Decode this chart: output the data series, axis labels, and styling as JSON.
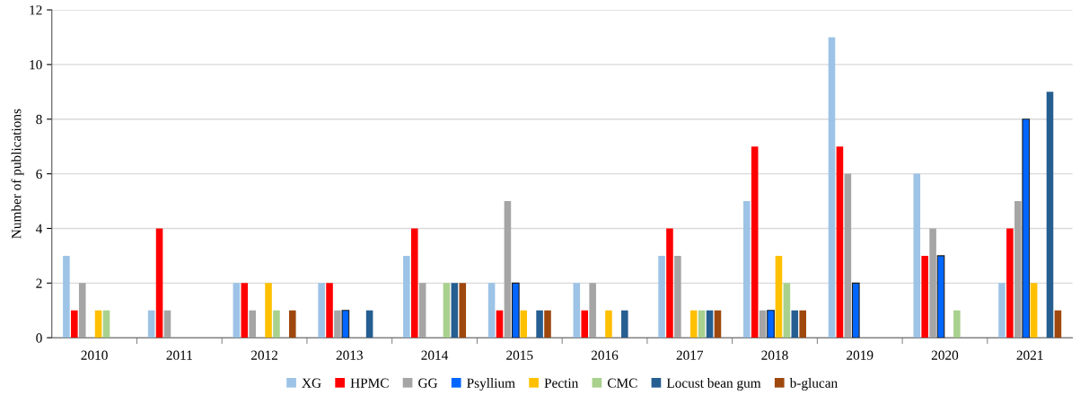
{
  "chart_data": {
    "type": "bar",
    "ylabel": "Number of publications",
    "categories": [
      "2010",
      "2011",
      "2012",
      "2013",
      "2014",
      "2015",
      "2016",
      "2017",
      "2018",
      "2019",
      "2020",
      "2021"
    ],
    "series": [
      {
        "name": "XG",
        "color": "#9dc3e6",
        "values": [
          3,
          1,
          2,
          2,
          3,
          2,
          2,
          3,
          5,
          11,
          6,
          2
        ]
      },
      {
        "name": "HPMC",
        "color": "#ff0000",
        "values": [
          1,
          4,
          2,
          2,
          4,
          1,
          1,
          4,
          7,
          7,
          3,
          4
        ]
      },
      {
        "name": "GG",
        "color": "#a5a5a5",
        "values": [
          2,
          1,
          1,
          1,
          2,
          5,
          2,
          3,
          1,
          6,
          4,
          5
        ]
      },
      {
        "name": "Psyllium",
        "color": "#0066ff",
        "values": [
          0,
          0,
          0,
          1,
          0,
          2,
          0,
          0,
          1,
          2,
          3,
          8
        ]
      },
      {
        "name": "Pectin",
        "color": "#ffc000",
        "values": [
          1,
          0,
          2,
          0,
          0,
          1,
          1,
          1,
          3,
          0,
          0,
          2
        ]
      },
      {
        "name": "CMC",
        "color": "#a9d18e",
        "values": [
          1,
          0,
          1,
          0,
          2,
          0,
          0,
          1,
          2,
          0,
          1,
          0
        ]
      },
      {
        "name": "Locust bean gum",
        "color": "#255e91",
        "values": [
          0,
          0,
          0,
          1,
          2,
          1,
          1,
          1,
          1,
          0,
          0,
          9
        ]
      },
      {
        "name": "b-glucan",
        "color": "#9e480e",
        "values": [
          0,
          0,
          1,
          0,
          2,
          1,
          0,
          1,
          1,
          0,
          0,
          1
        ]
      }
    ],
    "ylim": [
      0,
      12
    ],
    "yticks": [
      0,
      2,
      4,
      6,
      8,
      10,
      12
    ],
    "grid": "y",
    "legend": "bottom"
  }
}
